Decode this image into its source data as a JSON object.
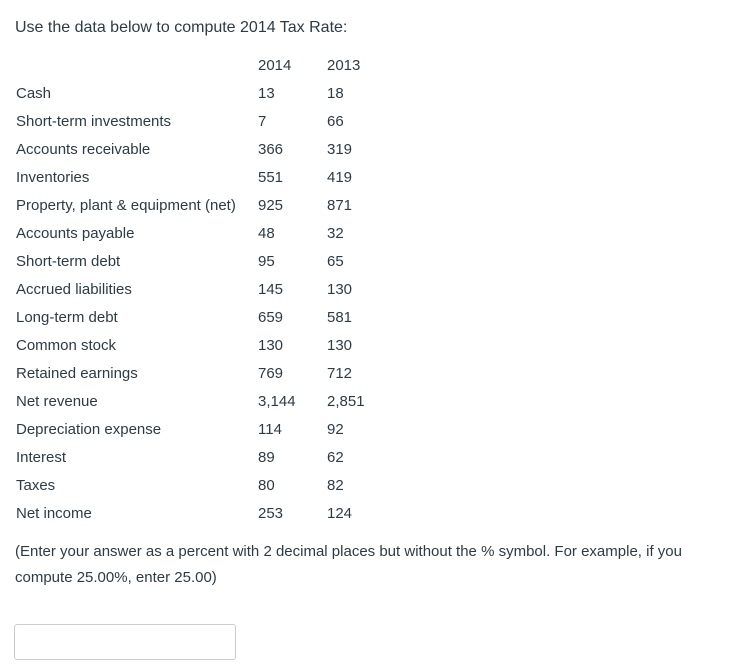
{
  "question": "Use the data below to compute 2014 Tax Rate:",
  "table": {
    "headers": [
      "",
      "2014",
      "2013"
    ],
    "rows": [
      {
        "label": "Cash",
        "y2014": "13",
        "y2013": "18"
      },
      {
        "label": "Short-term investments",
        "y2014": "7",
        "y2013": "66"
      },
      {
        "label": "Accounts receivable",
        "y2014": "366",
        "y2013": "319"
      },
      {
        "label": "Inventories",
        "y2014": "551",
        "y2013": "419"
      },
      {
        "label": "Property, plant & equipment (net)",
        "y2014": "925",
        "y2013": "871"
      },
      {
        "label": "Accounts payable",
        "y2014": "48",
        "y2013": "32"
      },
      {
        "label": "Short-term debt",
        "y2014": "95",
        "y2013": "65"
      },
      {
        "label": "Accrued liabilities",
        "y2014": "145",
        "y2013": "130"
      },
      {
        "label": "Long-term debt",
        "y2014": "659",
        "y2013": "581"
      },
      {
        "label": "Common stock",
        "y2014": "130",
        "y2013": "130"
      },
      {
        "label": "Retained earnings",
        "y2014": "769",
        "y2013": "712"
      },
      {
        "label": "Net revenue",
        "y2014": "3,144",
        "y2013": "2,851"
      },
      {
        "label": "Depreciation expense",
        "y2014": "114",
        "y2013": "92"
      },
      {
        "label": "Interest",
        "y2014": "89",
        "y2013": "62"
      },
      {
        "label": "Taxes",
        "y2014": "80",
        "y2013": "82"
      },
      {
        "label": "Net income",
        "y2014": "253",
        "y2013": "124"
      }
    ]
  },
  "instructions": "(Enter your answer as a percent with 2 decimal places but without the % symbol. For example, if you compute 25.00%, enter 25.00)",
  "answer": {
    "value": "",
    "placeholder": ""
  }
}
